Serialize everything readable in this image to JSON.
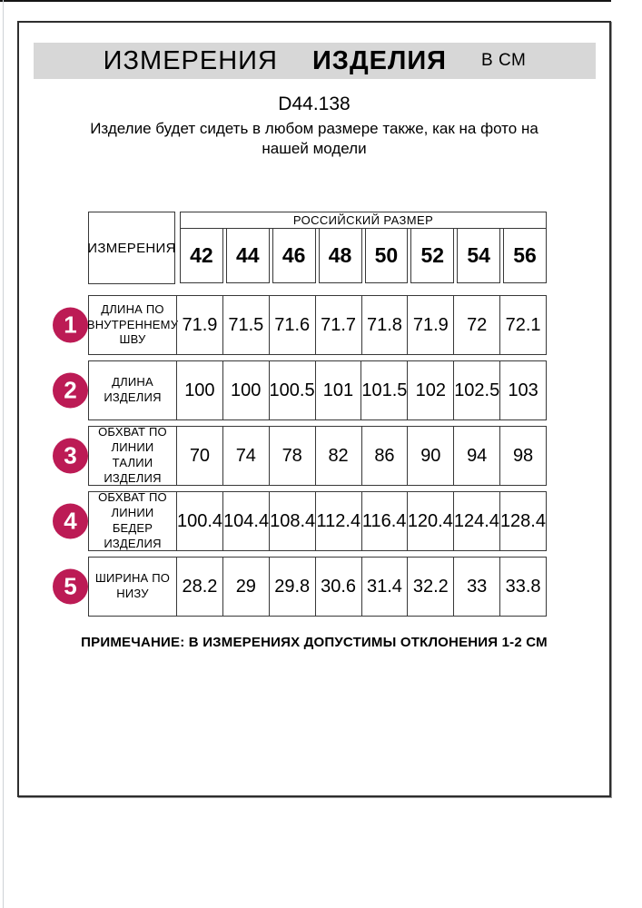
{
  "page": {
    "title_word1": "ИЗМЕРЕНИЯ",
    "title_word2": "ИЗДЕЛИЯ",
    "title_unit": "В СМ",
    "article": "D44.138",
    "description_line1": "Изделие будет сидеть в любом размере также, как на фото на",
    "description_line2": "нашей модели",
    "note": "ПРИМЕЧАНИЕ: В ИЗМЕРЕНИЯХ ДОПУСТИМЫ ОТКЛОНЕНИЯ 1-2 СМ",
    "header_bar_color": "#d7d7d7"
  },
  "table": {
    "measurements_header": "ИЗМЕРЕНИЯ",
    "size_group_header": "РОССИЙСКИЙ РАЗМЕР",
    "sizes": [
      "42",
      "44",
      "46",
      "48",
      "50",
      "52",
      "54",
      "56"
    ],
    "badge_color": "#bc1b55",
    "rows": [
      {
        "num": "1",
        "label": "ДЛИНА ПО ВНУТРЕННЕМУ ШВУ",
        "values": [
          "71.9",
          "71.5",
          "71.6",
          "71.7",
          "71.8",
          "71.9",
          "72",
          "72.1"
        ]
      },
      {
        "num": "2",
        "label": "ДЛИНА ИЗДЕЛИЯ",
        "values": [
          "100",
          "100",
          "100.5",
          "101",
          "101.5",
          "102",
          "102.5",
          "103"
        ]
      },
      {
        "num": "3",
        "label": "ОБХВАТ ПО ЛИНИИ ТАЛИИ ИЗДЕЛИЯ",
        "values": [
          "70",
          "74",
          "78",
          "82",
          "86",
          "90",
          "94",
          "98"
        ]
      },
      {
        "num": "4",
        "label": "ОБХВАТ ПО ЛИНИИ БЕДЕР ИЗДЕЛИЯ",
        "values": [
          "100.4",
          "104.4",
          "108.4",
          "112.4",
          "116.4",
          "120.4",
          "124.4",
          "128.4"
        ]
      },
      {
        "num": "5",
        "label": "ШИРИНА ПО НИЗУ",
        "values": [
          "28.2",
          "29",
          "29.8",
          "30.6",
          "31.4",
          "32.2",
          "33",
          "33.8"
        ]
      }
    ]
  }
}
